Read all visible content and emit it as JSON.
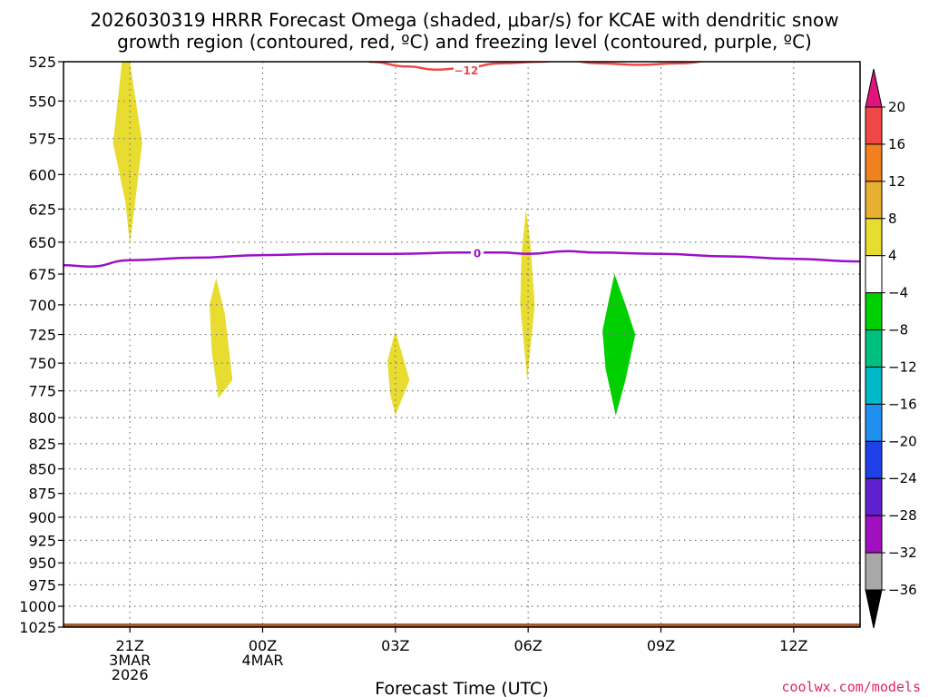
{
  "chart_data": {
    "type": "time-height contour",
    "title": [
      "2026030319 HRRR Forecast Omega (shaded, μbar/s) for KCAE with dendritic snow",
      "growth region (contoured, red, ºC) and freezing level (contoured, purple, ºC)"
    ],
    "xlabel": "Forecast Time (UTC)",
    "credit": "coolwx.com/models",
    "x_range_hours": [
      -1.5,
      16.5
    ],
    "x_ticks": [
      {
        "hour": 0,
        "lines": [
          "21Z",
          "3MAR",
          "2026"
        ]
      },
      {
        "hour": 3,
        "lines": [
          "00Z",
          "4MAR"
        ]
      },
      {
        "hour": 6,
        "lines": [
          "03Z"
        ]
      },
      {
        "hour": 9,
        "lines": [
          "06Z"
        ]
      },
      {
        "hour": 12,
        "lines": [
          "09Z"
        ]
      },
      {
        "hour": 15,
        "lines": [
          "12Z"
        ]
      }
    ],
    "y_range_hpa": [
      525,
      1025
    ],
    "y_log_scale": true,
    "y_ticks": [
      525,
      550,
      575,
      600,
      625,
      650,
      675,
      700,
      725,
      750,
      775,
      800,
      825,
      850,
      875,
      900,
      925,
      950,
      975,
      1000,
      1025
    ],
    "grid": true,
    "colorbar": {
      "labels": [
        "20",
        "16",
        "12",
        "8",
        "4",
        "−4",
        "−8",
        "−12",
        "−16",
        "−20",
        "−24",
        "−28",
        "−32",
        "−36"
      ],
      "top_arrow_color": "#e0147a",
      "bottom_arrow_color": "#000000",
      "bins": [
        {
          "color": "#f04848"
        },
        {
          "color": "#f08020"
        },
        {
          "color": "#e8b030"
        },
        {
          "color": "#e8dc30"
        },
        {
          "color": "#ffffff"
        },
        {
          "color": "#00d000"
        },
        {
          "color": "#00c080"
        },
        {
          "color": "#00b8c8"
        },
        {
          "color": "#2090f0"
        },
        {
          "color": "#2040e8"
        },
        {
          "color": "#6020d0"
        },
        {
          "color": "#a010c0"
        },
        {
          "color": "#a8a8a8"
        }
      ]
    },
    "omega_areas": [
      {
        "color": "#e8dc30",
        "points": [
          [
            -0.18,
            525
          ],
          [
            0.0,
            525
          ],
          [
            0.28,
            578
          ],
          [
            0.1,
            625
          ],
          [
            0.0,
            652
          ],
          [
            -0.1,
            620
          ],
          [
            -0.38,
            578
          ]
        ]
      },
      {
        "color": "#e8dc30",
        "points": [
          [
            1.95,
            678
          ],
          [
            2.15,
            708
          ],
          [
            2.32,
            765
          ],
          [
            2.0,
            782
          ],
          [
            1.85,
            740
          ],
          [
            1.8,
            700
          ]
        ]
      },
      {
        "color": "#e8dc30",
        "points": [
          [
            6.0,
            722
          ],
          [
            6.15,
            742
          ],
          [
            6.32,
            765
          ],
          [
            6.0,
            798
          ],
          [
            5.88,
            778
          ],
          [
            5.82,
            748
          ]
        ]
      },
      {
        "color": "#e8dc30",
        "points": [
          [
            8.95,
            625
          ],
          [
            9.05,
            650
          ],
          [
            9.15,
            700
          ],
          [
            8.98,
            765
          ],
          [
            8.82,
            700
          ],
          [
            8.85,
            660
          ]
        ]
      },
      {
        "color": "#00d000",
        "points": [
          [
            10.95,
            675
          ],
          [
            11.2,
            700
          ],
          [
            11.42,
            725
          ],
          [
            11.2,
            765
          ],
          [
            10.98,
            798
          ],
          [
            10.75,
            755
          ],
          [
            10.68,
            722
          ],
          [
            10.8,
            700
          ]
        ]
      }
    ],
    "dgz_contour": {
      "label": "−12",
      "color": "#f04848",
      "points": [
        [
          5.4,
          525
        ],
        [
          6.3,
          528
        ],
        [
          6.9,
          530
        ],
        [
          7.5,
          529
        ],
        [
          8.4,
          526
        ],
        [
          9.3,
          525
        ],
        [
          9.8,
          524
        ],
        [
          10.6,
          526
        ],
        [
          11.5,
          527
        ],
        [
          12.4,
          526
        ],
        [
          13.3,
          524
        ],
        [
          14.0,
          523
        ]
      ],
      "label_at": [
        7.6,
        530
      ]
    },
    "freezing_level": {
      "label": "0",
      "color": "#9a10c8",
      "points": [
        [
          -1.5,
          668
        ],
        [
          -0.9,
          669
        ],
        [
          0.0,
          664
        ],
        [
          1.5,
          662
        ],
        [
          3.0,
          660
        ],
        [
          4.5,
          659
        ],
        [
          6.0,
          659
        ],
        [
          7.5,
          658
        ],
        [
          8.4,
          658
        ],
        [
          9.0,
          659
        ],
        [
          9.9,
          657
        ],
        [
          10.5,
          658
        ],
        [
          12.0,
          659
        ],
        [
          13.5,
          661
        ],
        [
          15.0,
          663
        ],
        [
          16.5,
          665
        ]
      ],
      "label_at": [
        7.85,
        658
      ]
    },
    "surface_band_color": "#a85a2e"
  }
}
